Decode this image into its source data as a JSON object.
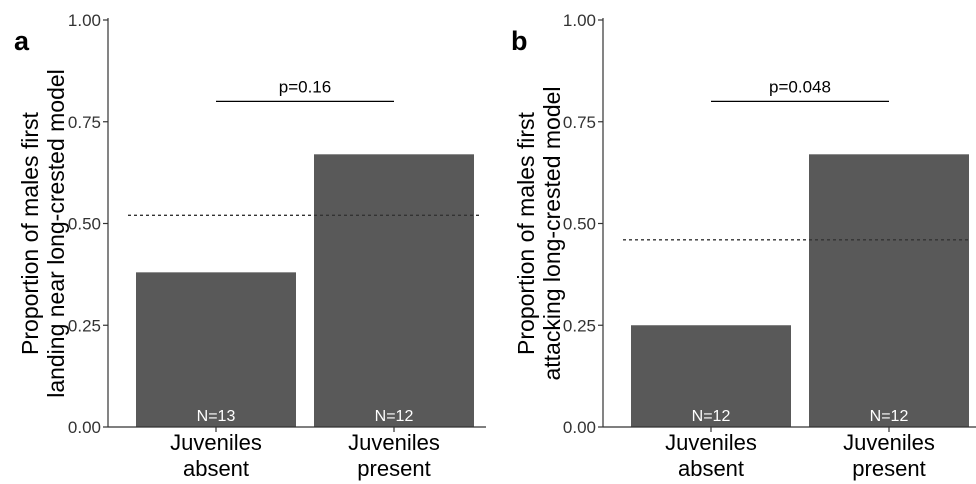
{
  "chart_data": [
    {
      "type": "bar",
      "panel_label": "a",
      "ylabel_lines": [
        "Proportion of males first",
        "landing near long-crested model"
      ],
      "categories": [
        {
          "lines": [
            "Juveniles",
            "absent"
          ]
        },
        {
          "lines": [
            "Juveniles",
            "present"
          ]
        }
      ],
      "values": [
        0.38,
        0.67
      ],
      "n_labels": [
        "N=13",
        "N=12"
      ],
      "ylim": [
        0,
        1
      ],
      "yticks": [
        "0.00",
        "0.25",
        "0.50",
        "0.75",
        "1.00"
      ],
      "reference_line": 0.52,
      "comparison": {
        "label": "p=0.16",
        "y": 0.8
      }
    },
    {
      "type": "bar",
      "panel_label": "b",
      "ylabel_lines": [
        "Proportion of males first",
        "attacking long-crested model"
      ],
      "categories": [
        {
          "lines": [
            "Juveniles",
            "absent"
          ]
        },
        {
          "lines": [
            "Juveniles",
            "present"
          ]
        }
      ],
      "values": [
        0.25,
        0.67
      ],
      "n_labels": [
        "N=12",
        "N=12"
      ],
      "ylim": [
        0,
        1
      ],
      "yticks": [
        "0.00",
        "0.25",
        "0.50",
        "0.75",
        "1.00"
      ],
      "reference_line": 0.46,
      "comparison": {
        "label": "p=0.048",
        "y": 0.8
      }
    }
  ],
  "colors": {
    "bar": "#595959",
    "axis": "#333333",
    "n_label": "#ffffff"
  }
}
